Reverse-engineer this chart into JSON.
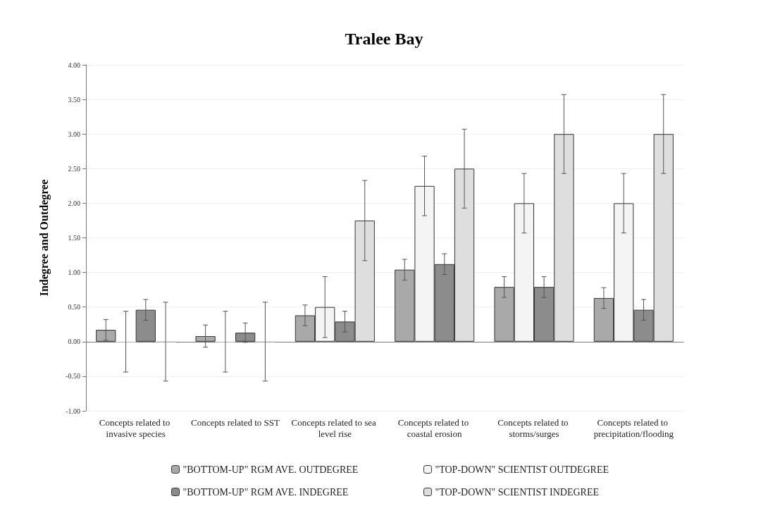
{
  "chart_data": {
    "type": "bar",
    "title": "Tralee Bay",
    "ylabel": "Indegree and Outdegree",
    "categories": [
      "Concepts related to invasive species",
      "Concepts related to SST",
      "Concepts related to sea level rise",
      "Concepts related to coastal erosion",
      "Concepts related to storms/surges",
      "Concepts related to precipitation/flooding"
    ],
    "series": [
      {
        "name": "\"BOTTOM-UP\" RGM AVE. OUTDEGREE",
        "color": "#a9a9a9",
        "values": [
          0.17,
          0.08,
          0.38,
          1.04,
          0.79,
          0.63
        ],
        "errors": [
          0.15,
          0.16,
          0.15,
          0.15,
          0.15,
          0.15
        ]
      },
      {
        "name": "\"TOP-DOWN\" SCIENTIST OUTDEGREE",
        "color": "#f4f4f4",
        "values": [
          0,
          0,
          0.5,
          2.25,
          2.0,
          2.0
        ],
        "errors": [
          0.44,
          0.44,
          0.44,
          0.43,
          0.43,
          0.43
        ]
      },
      {
        "name": "\"BOTTOM-UP\" RGM AVE. INDEGREE",
        "color": "#8c8c8c",
        "values": [
          0.46,
          0.13,
          0.29,
          1.12,
          0.79,
          0.46
        ],
        "errors": [
          0.15,
          0.14,
          0.15,
          0.15,
          0.15,
          0.15
        ]
      },
      {
        "name": "\"TOP-DOWN\" SCIENTIST INDEGREE",
        "color": "#dedede",
        "values": [
          0,
          0,
          1.75,
          2.5,
          3.0,
          3.0
        ],
        "errors": [
          0.57,
          0.57,
          0.58,
          0.57,
          0.57,
          0.57
        ]
      }
    ],
    "ylim": [
      -1,
      4
    ],
    "yticks": [
      {
        "value": -1,
        "label": "-1.00"
      },
      {
        "value": -0.5,
        "label": "-0.50"
      },
      {
        "value": 0,
        "label": "0.00"
      },
      {
        "value": 0.5,
        "label": "0.50"
      },
      {
        "value": 1,
        "label": "1.00"
      },
      {
        "value": 1.5,
        "label": "1.50"
      },
      {
        "value": 2,
        "label": "2.00"
      },
      {
        "value": 2.5,
        "label": "2.50"
      },
      {
        "value": 3,
        "label": "3.00"
      },
      {
        "value": 3.5,
        "label": "3.50"
      },
      {
        "value": 4,
        "label": "4.00"
      }
    ],
    "grid": "y",
    "legend": "bottom"
  }
}
